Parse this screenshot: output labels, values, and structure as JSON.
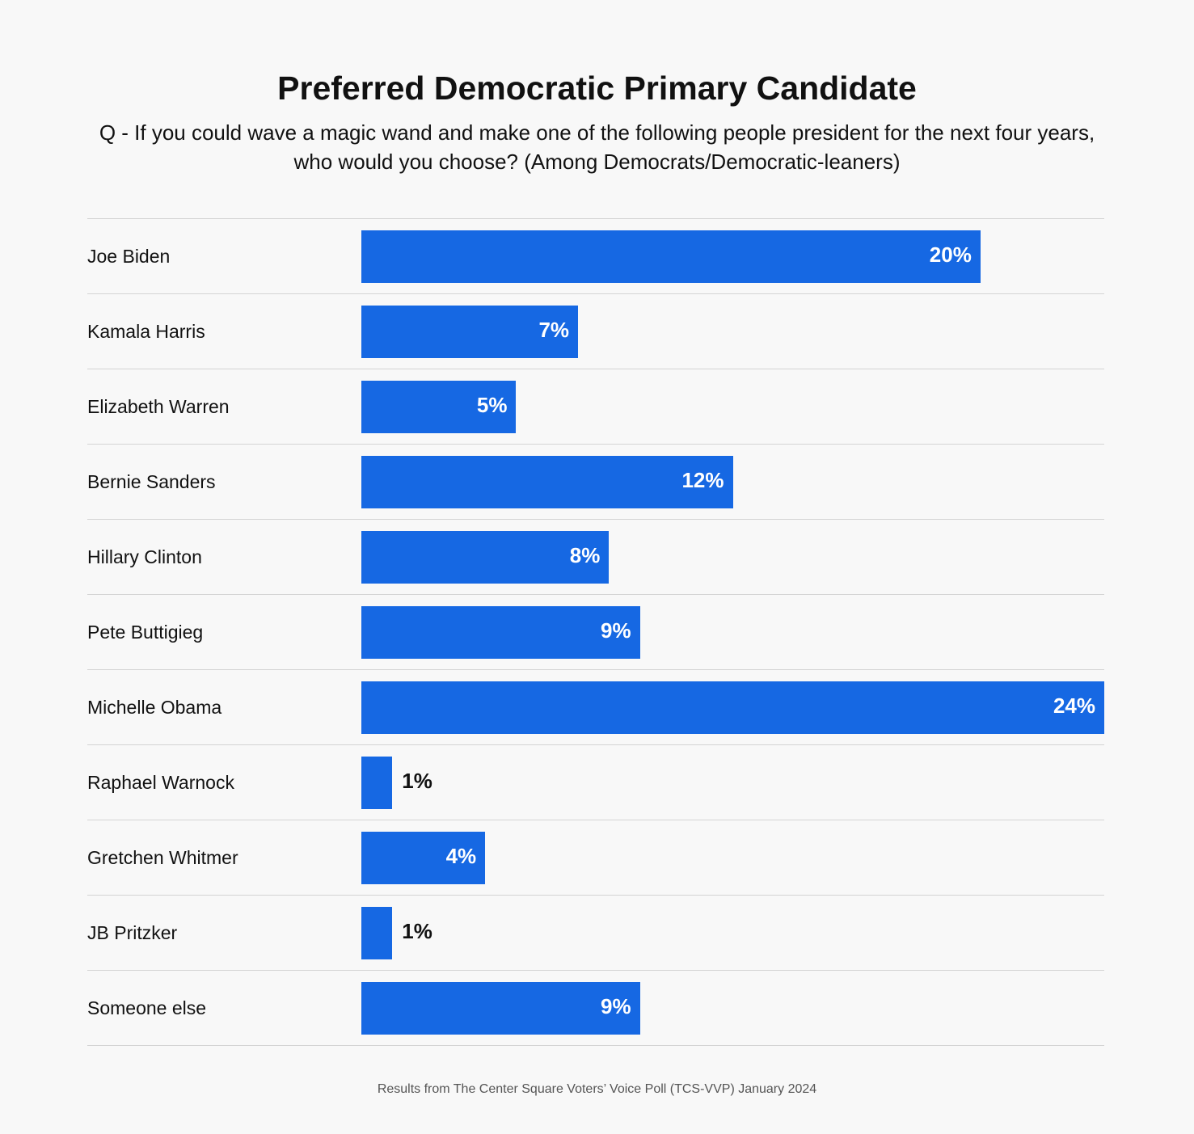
{
  "chart_data": {
    "type": "bar",
    "orientation": "horizontal",
    "title": "Preferred Democratic Primary Candidate",
    "subtitle": "Q - If you could wave a magic wand and make one of the following people president for the next four years, who would you choose? (Among Democrats/Democratic-leaners)",
    "categories": [
      "Joe Biden",
      "Kamala Harris",
      "Elizabeth Warren",
      "Bernie Sanders",
      "Hillary Clinton",
      "Pete Buttigieg",
      "Michelle Obama",
      "Raphael Warnock",
      "Gretchen Whitmer",
      "JB Pritzker",
      "Someone else"
    ],
    "values": [
      20,
      7,
      5,
      12,
      8,
      9,
      24,
      1,
      4,
      1,
      9
    ],
    "value_labels": [
      "20%",
      "7%",
      "5%",
      "12%",
      "8%",
      "9%",
      "24%",
      "1%",
      "4%",
      "1%",
      "9%"
    ],
    "xlim": [
      0,
      24
    ],
    "grid": false,
    "bar_color": "#1668e3",
    "footer": "Results from The Center Square Voters’ Voice Poll (TCS-VVP) January 2024"
  }
}
